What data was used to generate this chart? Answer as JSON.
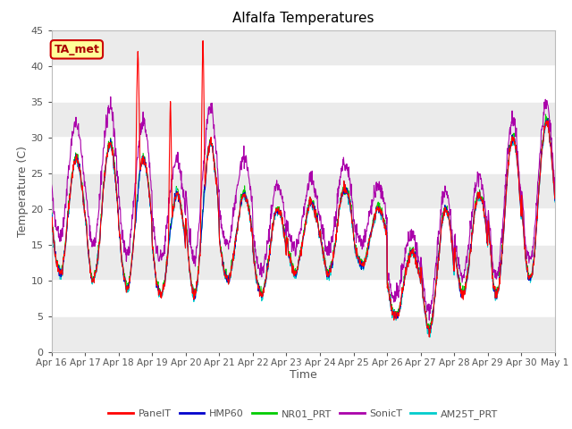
{
  "title": "Alfalfa Temperatures",
  "xlabel": "Time",
  "ylabel": "Temperature (C)",
  "ylim": [
    0,
    45
  ],
  "background_color": "#ffffff",
  "plot_bg_light": "#ebebeb",
  "plot_bg_dark": "#d8d8d8",
  "label_box_text": "TA_met",
  "label_box_facecolor": "#ffff99",
  "label_box_edgecolor": "#cc0000",
  "series_colors": {
    "PanelT": "#ff0000",
    "HMP60": "#0000cc",
    "NR01_PRT": "#00cc00",
    "SonicT": "#aa00aa",
    "AM25T_PRT": "#00cccc"
  },
  "legend_labels": [
    "PanelT",
    "HMP60",
    "NR01_PRT",
    "SonicT",
    "AM25T_PRT"
  ],
  "x_tick_labels": [
    "Apr 16",
    "Apr 17",
    "Apr 18",
    "Apr 19",
    "Apr 20",
    "Apr 21",
    "Apr 22",
    "Apr 23",
    "Apr 24",
    "Apr 25",
    "Apr 26",
    "Apr 27",
    "Apr 28",
    "Apr 29",
    "Apr 30",
    "May 1"
  ],
  "total_days": 15,
  "points_per_day": 96
}
